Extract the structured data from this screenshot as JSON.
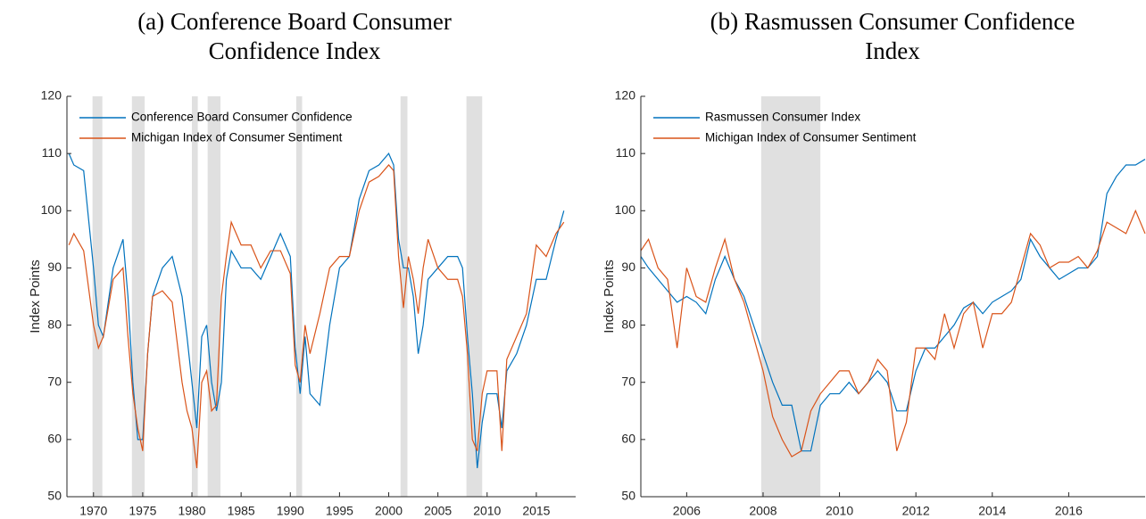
{
  "chart_data": [
    {
      "type": "line",
      "title": "(a) Conference Board Consumer Confidence Index",
      "y_label": "Index Points",
      "x": [
        1967.5,
        1968,
        1969,
        1970,
        1970.5,
        1971,
        1972,
        1973,
        1973.5,
        1974,
        1974.5,
        1975,
        1975.5,
        1976,
        1977,
        1978,
        1979,
        1979.5,
        1980,
        1980.5,
        1981,
        1981.5,
        1982,
        1982.5,
        1983,
        1983.5,
        1984,
        1985,
        1986,
        1987,
        1988,
        1989,
        1990,
        1990.5,
        1991,
        1991.5,
        1992,
        1993,
        1994,
        1995,
        1996,
        1997,
        1998,
        1999,
        2000,
        2000.5,
        2001,
        2001.5,
        2002,
        2002.5,
        2003,
        2003.5,
        2004,
        2005,
        2006,
        2007,
        2007.5,
        2008,
        2008.5,
        2009,
        2009.5,
        2010,
        2011,
        2011.5,
        2012,
        2013,
        2014,
        2015,
        2016,
        2017,
        2017.8
      ],
      "series": [
        {
          "name": "Conference Board Consumer Confidence",
          "color": "#0072BD",
          "values": [
            110,
            108,
            107,
            90,
            80,
            78,
            90,
            95,
            85,
            70,
            60,
            60,
            75,
            85,
            90,
            92,
            85,
            78,
            70,
            62,
            78,
            80,
            70,
            65,
            70,
            88,
            93,
            90,
            90,
            88,
            92,
            96,
            92,
            76,
            68,
            78,
            68,
            66,
            80,
            90,
            92,
            102,
            107,
            108,
            110,
            108,
            95,
            90,
            90,
            85,
            75,
            80,
            88,
            90,
            92,
            92,
            90,
            78,
            68,
            55,
            63,
            68,
            68,
            62,
            72,
            75,
            80,
            88,
            88,
            95,
            100
          ]
        },
        {
          "name": "Michigan Index of Consumer Sentiment",
          "color": "#D95319",
          "values": [
            94,
            96,
            93,
            80,
            76,
            78,
            88,
            90,
            78,
            68,
            62,
            58,
            75,
            85,
            86,
            84,
            70,
            65,
            62,
            55,
            70,
            72,
            65,
            66,
            85,
            92,
            98,
            94,
            94,
            90,
            93,
            93,
            89,
            73,
            70,
            80,
            75,
            82,
            90,
            92,
            92,
            100,
            105,
            106,
            108,
            107,
            92,
            83,
            92,
            88,
            82,
            90,
            95,
            90,
            88,
            88,
            85,
            75,
            60,
            58,
            68,
            72,
            72,
            58,
            74,
            78,
            82,
            94,
            92,
            96,
            98
          ]
        }
      ],
      "shaded_ranges": [
        [
          1969.9,
          1970.9
        ],
        [
          1973.9,
          1975.2
        ],
        [
          1980.0,
          1980.6
        ],
        [
          1981.6,
          1982.9
        ],
        [
          1990.6,
          1991.2
        ],
        [
          2001.2,
          2001.9
        ],
        [
          2007.9,
          2009.5
        ]
      ],
      "shade_color": "#e0e0e0",
      "xlim": [
        1967.3,
        2019
      ],
      "xticks": [
        1970,
        1975,
        1980,
        1985,
        1990,
        1995,
        2000,
        2005,
        2010,
        2015
      ],
      "ylim": [
        50,
        120
      ],
      "yticks": [
        50,
        60,
        70,
        80,
        90,
        100,
        110,
        120
      ],
      "legend": "upper left"
    },
    {
      "type": "line",
      "title": "(b) Rasmussen Consumer Confidence Index",
      "y_label": "Index Points",
      "x": [
        2004.8,
        2005,
        2005.25,
        2005.5,
        2005.75,
        2006,
        2006.25,
        2006.5,
        2006.75,
        2007,
        2007.25,
        2007.5,
        2007.75,
        2008,
        2008.25,
        2008.5,
        2008.75,
        2009,
        2009.25,
        2009.5,
        2009.75,
        2010,
        2010.25,
        2010.5,
        2010.75,
        2011,
        2011.25,
        2011.5,
        2011.75,
        2012,
        2012.25,
        2012.5,
        2012.75,
        2013,
        2013.25,
        2013.5,
        2013.75,
        2014,
        2014.25,
        2014.5,
        2014.75,
        2015,
        2015.25,
        2015.5,
        2015.75,
        2016,
        2016.25,
        2016.5,
        2016.75,
        2017,
        2017.25,
        2017.5,
        2017.75,
        2018
      ],
      "series": [
        {
          "name": "Rasmussen Consumer Index",
          "color": "#0072BD",
          "values": [
            92,
            90,
            88,
            86,
            84,
            85,
            84,
            82,
            88,
            92,
            88,
            85,
            80,
            75,
            70,
            66,
            66,
            58,
            58,
            66,
            68,
            68,
            70,
            68,
            70,
            72,
            70,
            65,
            65,
            72,
            76,
            76,
            78,
            80,
            83,
            84,
            82,
            84,
            85,
            86,
            88,
            95,
            92,
            90,
            88,
            89,
            90,
            90,
            92,
            103,
            106,
            108,
            108,
            109
          ]
        },
        {
          "name": "Michigan Index of Consumer Sentiment",
          "color": "#D95319",
          "values": [
            93,
            95,
            90,
            88,
            76,
            90,
            85,
            84,
            90,
            95,
            88,
            84,
            78,
            72,
            64,
            60,
            57,
            58,
            65,
            68,
            70,
            72,
            72,
            68,
            70,
            74,
            72,
            58,
            63,
            76,
            76,
            74,
            82,
            76,
            82,
            84,
            76,
            82,
            82,
            84,
            90,
            96,
            94,
            90,
            91,
            91,
            92,
            90,
            93,
            98,
            97,
            96,
            100,
            96
          ]
        }
      ],
      "shaded_ranges": [
        [
          2007.95,
          2009.5
        ]
      ],
      "shade_color": "#e0e0e0",
      "xlim": [
        2004.8,
        2018
      ],
      "xticks": [
        2006,
        2008,
        2010,
        2012,
        2014,
        2016
      ],
      "ylim": [
        50,
        120
      ],
      "yticks": [
        50,
        60,
        70,
        80,
        90,
        100,
        110,
        120
      ],
      "legend": "upper left"
    }
  ]
}
